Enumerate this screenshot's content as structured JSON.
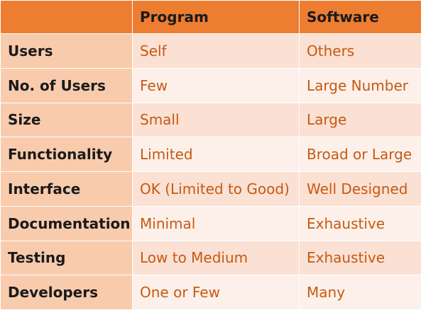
{
  "table": {
    "header": {
      "corner": "",
      "col_program": "Program",
      "col_software": "Software"
    },
    "rows": [
      {
        "label": "Users",
        "program": "Self",
        "software": "Others"
      },
      {
        "label": "No. of Users",
        "program": "Few",
        "software": "Large Number"
      },
      {
        "label": "Size",
        "program": "Small",
        "software": "Large"
      },
      {
        "label": "Functionality",
        "program": "Limited",
        "software": "Broad or Large"
      },
      {
        "label": "Interface",
        "program": "OK (Limited to Good)",
        "software": "Well Designed"
      },
      {
        "label": "Documentation",
        "program": "Minimal",
        "software": "Exhaustive"
      },
      {
        "label": "Testing",
        "program": "Low to Medium",
        "software": "Exhaustive"
      },
      {
        "label": "Developers",
        "program": "One or Few",
        "software": "Many"
      }
    ]
  },
  "colors": {
    "header": "#ed7d31",
    "first_column": "#f8cbad",
    "row_band_dark": "#fbe0d4",
    "row_band_light": "#fdf0ea",
    "value_text": "#c55a11"
  }
}
